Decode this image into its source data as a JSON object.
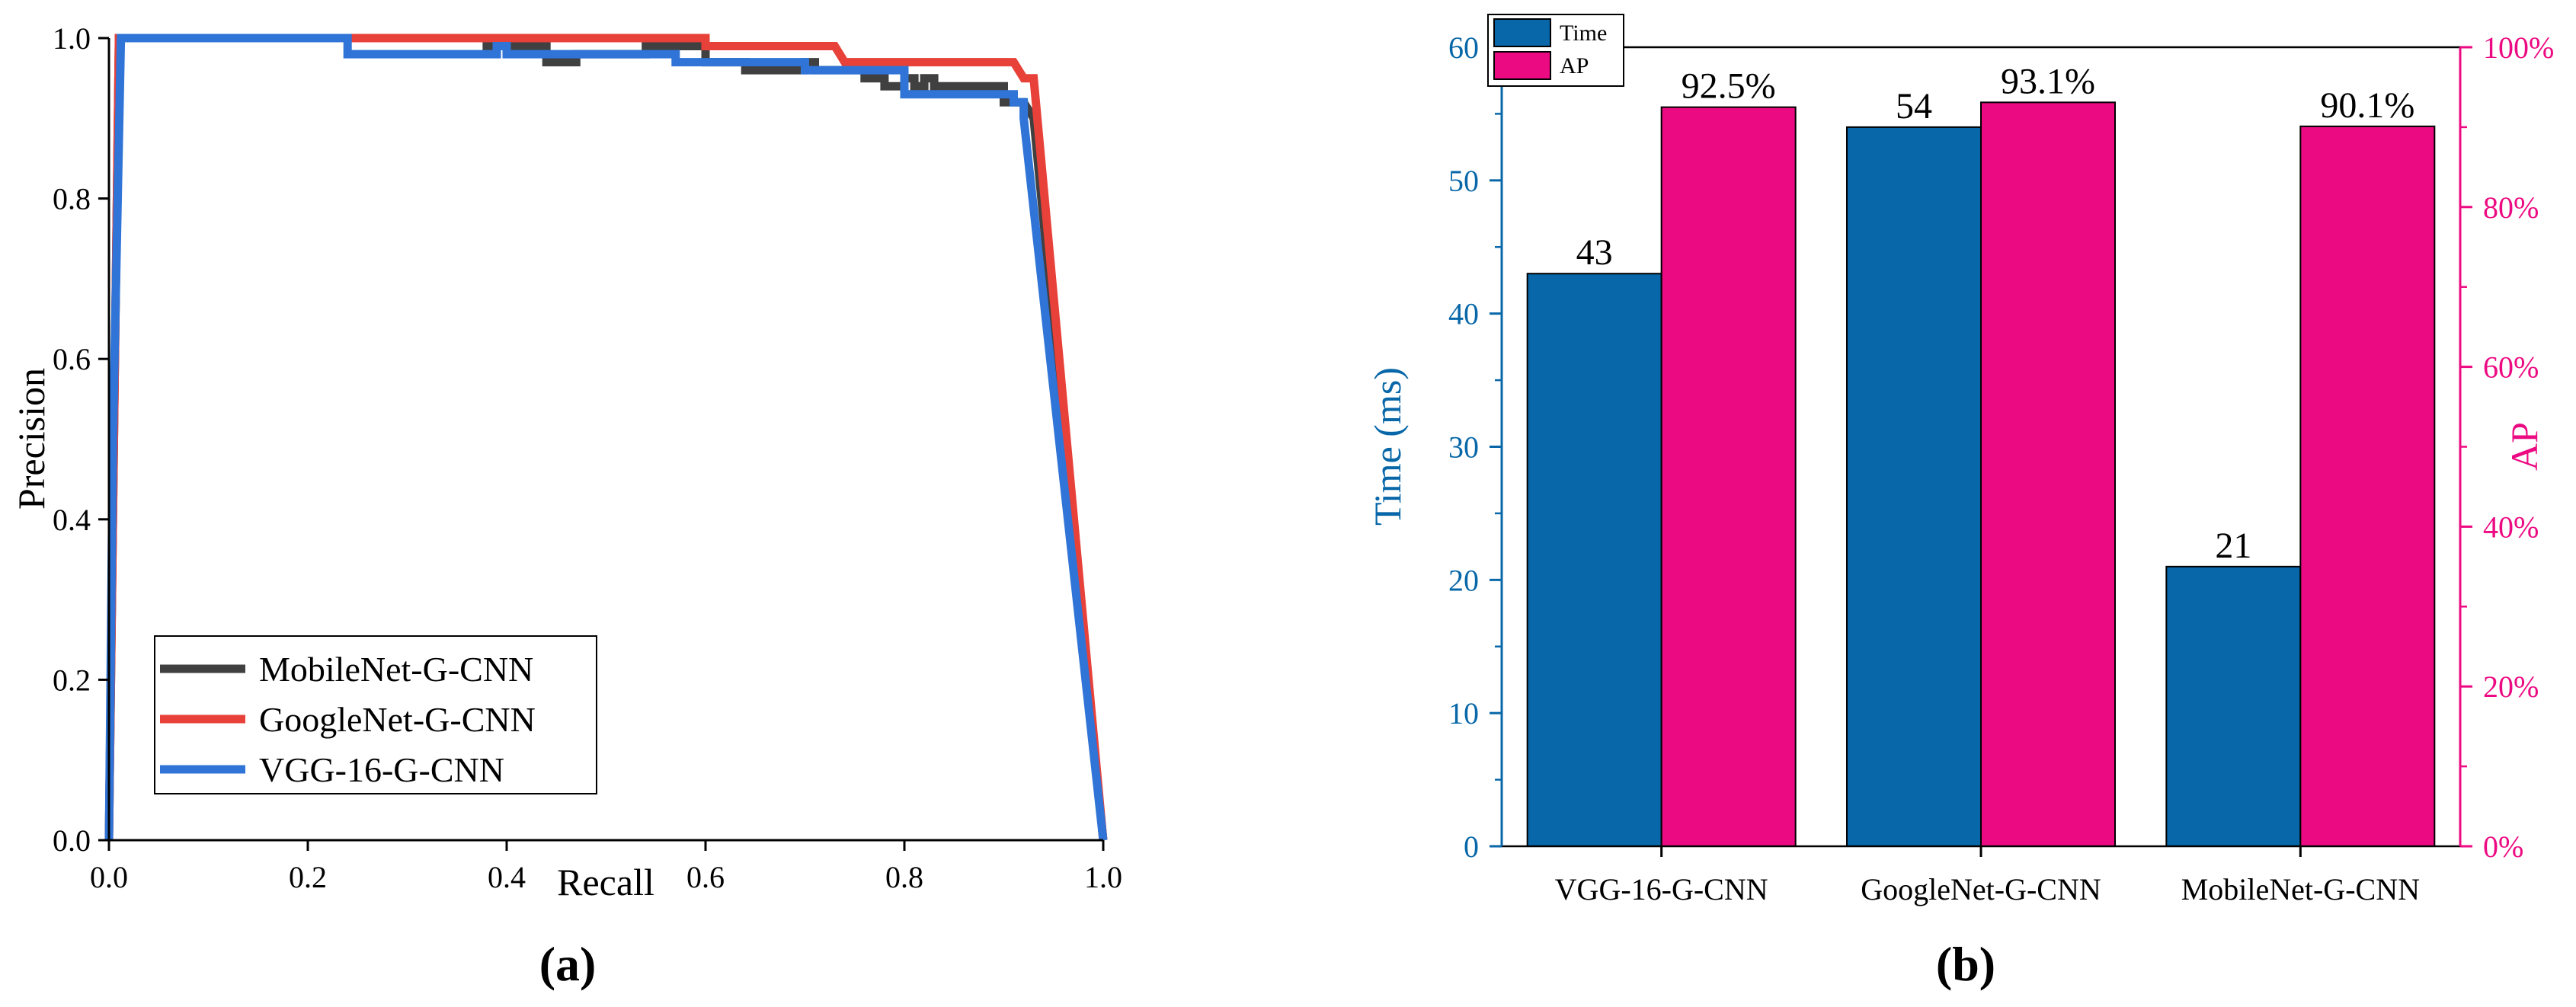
{
  "panels": {
    "a": {
      "caption": "(a)"
    },
    "b": {
      "caption": "(b)"
    }
  },
  "chart_data": [
    {
      "type": "line",
      "title": "",
      "xlabel": "Recall",
      "ylabel": "Precision",
      "xlim": [
        0,
        1
      ],
      "ylim": [
        0,
        1
      ],
      "xticks": [
        "0.0",
        "0.2",
        "0.4",
        "0.6",
        "0.8",
        "1.0"
      ],
      "yticks": [
        "0.0",
        "0.2",
        "0.4",
        "0.6",
        "0.8",
        "1.0"
      ],
      "grid": false,
      "legend_position": "bottom-left",
      "series": [
        {
          "name": "MobileNet-G-CNN",
          "color": "#404040",
          "x": [
            0.0,
            0.005,
            0.01,
            0.3,
            0.38,
            0.38,
            0.44,
            0.44,
            0.47,
            0.47,
            0.54,
            0.54,
            0.6,
            0.6,
            0.64,
            0.64,
            0.7,
            0.7,
            0.71,
            0.71,
            0.76,
            0.76,
            0.78,
            0.78,
            0.8,
            0.8,
            0.81,
            0.81,
            0.82,
            0.82,
            0.83,
            0.83,
            0.9,
            0.9,
            0.92,
            0.93,
            1.0
          ],
          "y": [
            0.0,
            0.5,
            1.0,
            1.0,
            1.0,
            0.99,
            0.99,
            0.97,
            0.97,
            0.98,
            0.98,
            0.99,
            0.99,
            0.97,
            0.97,
            0.96,
            0.96,
            0.97,
            0.97,
            0.96,
            0.96,
            0.95,
            0.95,
            0.94,
            0.94,
            0.95,
            0.95,
            0.94,
            0.94,
            0.95,
            0.95,
            0.94,
            0.94,
            0.92,
            0.92,
            0.9,
            0.0
          ]
        },
        {
          "name": "GoogleNet-G-CNN",
          "color": "#e8413a",
          "x": [
            0.0,
            0.005,
            0.01,
            0.6,
            0.6,
            0.73,
            0.74,
            0.74,
            0.91,
            0.92,
            0.92,
            0.93,
            1.0
          ],
          "y": [
            0.0,
            0.5,
            1.0,
            1.0,
            0.99,
            0.99,
            0.97,
            0.97,
            0.97,
            0.95,
            0.95,
            0.95,
            0.0
          ]
        },
        {
          "name": "VGG-16-G-CNN",
          "color": "#2f74d6",
          "x": [
            0.0,
            0.004,
            0.012,
            0.24,
            0.24,
            0.39,
            0.39,
            0.4,
            0.4,
            0.57,
            0.57,
            0.7,
            0.7,
            0.8,
            0.8,
            0.91,
            0.91,
            0.92,
            0.92,
            1.0
          ],
          "y": [
            0.0,
            0.5,
            1.0,
            1.0,
            0.98,
            0.98,
            0.99,
            0.99,
            0.98,
            0.98,
            0.97,
            0.97,
            0.96,
            0.96,
            0.93,
            0.93,
            0.92,
            0.92,
            0.9,
            0.0
          ]
        }
      ]
    },
    {
      "type": "bar",
      "title": "",
      "categories": [
        "VGG-16-G-CNN",
        "GoogleNet-G-CNN",
        "MobileNet-G-CNN"
      ],
      "ylabel_left": "Time (ms)",
      "ylabel_right": "AP",
      "ylim_left": [
        0,
        60
      ],
      "ylim_right": [
        0,
        100
      ],
      "yticks_left": [
        "0",
        "10",
        "20",
        "30",
        "40",
        "50",
        "60"
      ],
      "yticks_right": [
        "0%",
        "20%",
        "40%",
        "60%",
        "80%",
        "100%"
      ],
      "grid": false,
      "legend_position": "top-left",
      "series": [
        {
          "name": "Time",
          "axis": "left",
          "color": "#0767a8",
          "values": [
            43,
            54,
            21
          ],
          "labels": [
            "43",
            "54",
            "21"
          ]
        },
        {
          "name": "AP",
          "axis": "right",
          "color": "#ec0a82",
          "values": [
            92.5,
            93.1,
            90.1
          ],
          "labels": [
            "92.5%",
            "93.1%",
            "90.1%"
          ]
        }
      ],
      "axis_colors": {
        "left": "#0767a8",
        "right": "#ec0a82"
      }
    }
  ]
}
